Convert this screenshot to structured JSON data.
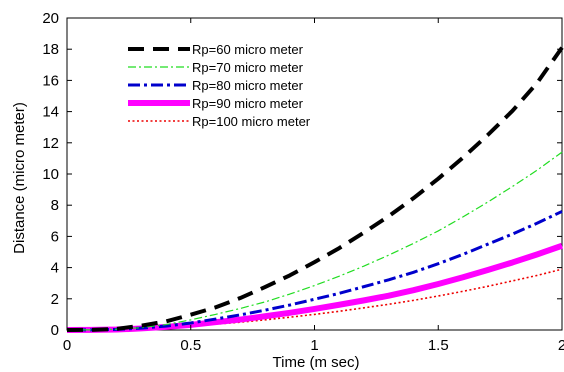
{
  "chart_data": {
    "type": "line",
    "xlabel": "Time (m sec)",
    "ylabel": "Distance  (micro meter)",
    "xlim": [
      0,
      2
    ],
    "ylim": [
      0,
      20
    ],
    "xticks": [
      "0",
      "0.5",
      "1",
      "1.5",
      "2"
    ],
    "yticks": [
      "0",
      "2",
      "4",
      "6",
      "8",
      "10",
      "12",
      "14",
      "16",
      "18",
      "20"
    ],
    "grid": false,
    "legend_position": "top-left",
    "x": [
      0,
      0.1,
      0.2,
      0.3,
      0.4,
      0.5,
      0.6,
      0.7,
      0.8,
      0.9,
      1.0,
      1.1,
      1.2,
      1.3,
      1.4,
      1.5,
      1.6,
      1.7,
      1.8,
      1.9,
      2.0
    ],
    "series": [
      {
        "name": "Rp=60 micro meter",
        "color": "#000000",
        "style": "dashed",
        "values": [
          0,
          0.01,
          0.07,
          0.28,
          0.55,
          0.98,
          1.45,
          2.05,
          2.75,
          3.5,
          4.35,
          5.25,
          6.25,
          7.3,
          8.45,
          9.7,
          11.05,
          12.5,
          14.05,
          15.85,
          18.1
        ]
      },
      {
        "name": "Rp=70 micro meter",
        "color": "#22dd22",
        "style": "dash-dot",
        "values": [
          0,
          0.01,
          0.05,
          0.15,
          0.35,
          0.65,
          1.0,
          1.38,
          1.8,
          2.3,
          2.85,
          3.45,
          4.1,
          4.8,
          5.55,
          6.35,
          7.25,
          8.2,
          9.2,
          10.25,
          11.4
        ]
      },
      {
        "name": "Rp=80 micro meter",
        "color": "#0000cc",
        "style": "dash-dot-thick",
        "values": [
          0,
          0.01,
          0.04,
          0.12,
          0.25,
          0.45,
          0.7,
          0.97,
          1.27,
          1.6,
          1.97,
          2.35,
          2.78,
          3.22,
          3.7,
          4.25,
          4.85,
          5.5,
          6.15,
          6.85,
          7.6
        ]
      },
      {
        "name": "Rp=90 micro meter",
        "color": "#ff00ff",
        "style": "solid-thick",
        "values": [
          0,
          0.01,
          0.03,
          0.1,
          0.2,
          0.33,
          0.5,
          0.67,
          0.88,
          1.1,
          1.35,
          1.62,
          1.9,
          2.2,
          2.55,
          2.95,
          3.38,
          3.85,
          4.33,
          4.85,
          5.4
        ]
      },
      {
        "name": "Rp=100 micro meter",
        "color": "#ee0000",
        "style": "dotted",
        "values": [
          0,
          0.01,
          0.03,
          0.08,
          0.15,
          0.25,
          0.37,
          0.5,
          0.65,
          0.82,
          1.0,
          1.2,
          1.42,
          1.65,
          1.9,
          2.18,
          2.48,
          2.8,
          3.15,
          3.5,
          3.9
        ]
      }
    ]
  }
}
